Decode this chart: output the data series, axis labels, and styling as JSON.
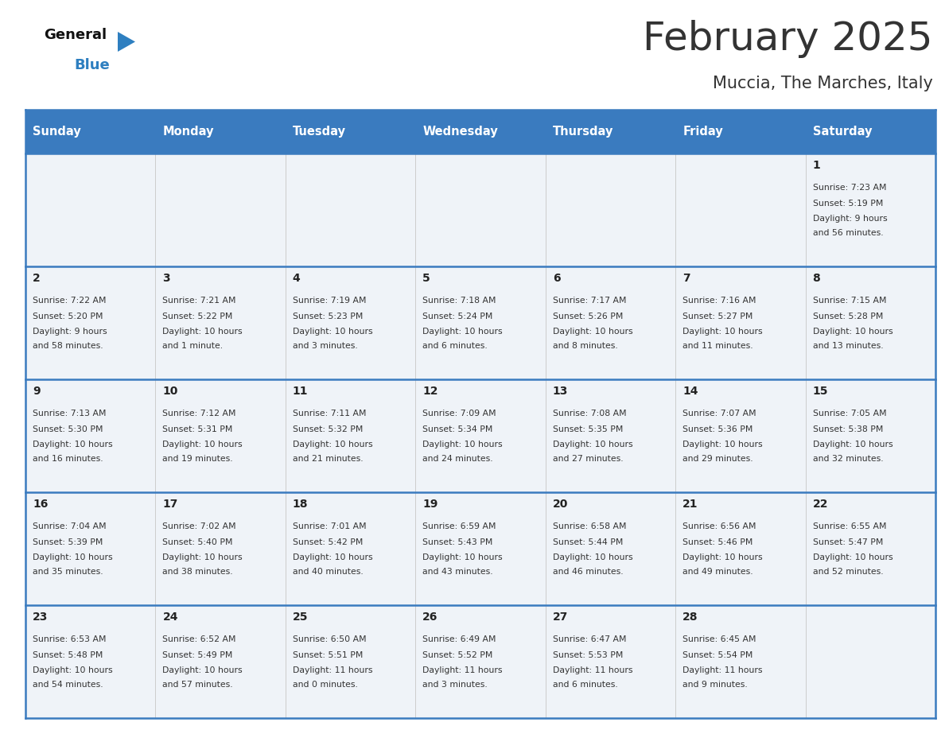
{
  "title": "February 2025",
  "subtitle": "Muccia, The Marches, Italy",
  "header_bg_color": "#3a7bbf",
  "header_text_color": "#ffffff",
  "cell_bg_color": "#eff3f8",
  "border_color": "#3a7bbf",
  "grid_line_color": "#aaaaaa",
  "day_names": [
    "Sunday",
    "Monday",
    "Tuesday",
    "Wednesday",
    "Thursday",
    "Friday",
    "Saturday"
  ],
  "days": [
    {
      "day": 1,
      "col": 6,
      "row": 0,
      "sunrise": "7:23 AM",
      "sunset": "5:19 PM",
      "daylight": "9 hours\nand 56 minutes."
    },
    {
      "day": 2,
      "col": 0,
      "row": 1,
      "sunrise": "7:22 AM",
      "sunset": "5:20 PM",
      "daylight": "9 hours\nand 58 minutes."
    },
    {
      "day": 3,
      "col": 1,
      "row": 1,
      "sunrise": "7:21 AM",
      "sunset": "5:22 PM",
      "daylight": "10 hours\nand 1 minute."
    },
    {
      "day": 4,
      "col": 2,
      "row": 1,
      "sunrise": "7:19 AM",
      "sunset": "5:23 PM",
      "daylight": "10 hours\nand 3 minutes."
    },
    {
      "day": 5,
      "col": 3,
      "row": 1,
      "sunrise": "7:18 AM",
      "sunset": "5:24 PM",
      "daylight": "10 hours\nand 6 minutes."
    },
    {
      "day": 6,
      "col": 4,
      "row": 1,
      "sunrise": "7:17 AM",
      "sunset": "5:26 PM",
      "daylight": "10 hours\nand 8 minutes."
    },
    {
      "day": 7,
      "col": 5,
      "row": 1,
      "sunrise": "7:16 AM",
      "sunset": "5:27 PM",
      "daylight": "10 hours\nand 11 minutes."
    },
    {
      "day": 8,
      "col": 6,
      "row": 1,
      "sunrise": "7:15 AM",
      "sunset": "5:28 PM",
      "daylight": "10 hours\nand 13 minutes."
    },
    {
      "day": 9,
      "col": 0,
      "row": 2,
      "sunrise": "7:13 AM",
      "sunset": "5:30 PM",
      "daylight": "10 hours\nand 16 minutes."
    },
    {
      "day": 10,
      "col": 1,
      "row": 2,
      "sunrise": "7:12 AM",
      "sunset": "5:31 PM",
      "daylight": "10 hours\nand 19 minutes."
    },
    {
      "day": 11,
      "col": 2,
      "row": 2,
      "sunrise": "7:11 AM",
      "sunset": "5:32 PM",
      "daylight": "10 hours\nand 21 minutes."
    },
    {
      "day": 12,
      "col": 3,
      "row": 2,
      "sunrise": "7:09 AM",
      "sunset": "5:34 PM",
      "daylight": "10 hours\nand 24 minutes."
    },
    {
      "day": 13,
      "col": 4,
      "row": 2,
      "sunrise": "7:08 AM",
      "sunset": "5:35 PM",
      "daylight": "10 hours\nand 27 minutes."
    },
    {
      "day": 14,
      "col": 5,
      "row": 2,
      "sunrise": "7:07 AM",
      "sunset": "5:36 PM",
      "daylight": "10 hours\nand 29 minutes."
    },
    {
      "day": 15,
      "col": 6,
      "row": 2,
      "sunrise": "7:05 AM",
      "sunset": "5:38 PM",
      "daylight": "10 hours\nand 32 minutes."
    },
    {
      "day": 16,
      "col": 0,
      "row": 3,
      "sunrise": "7:04 AM",
      "sunset": "5:39 PM",
      "daylight": "10 hours\nand 35 minutes."
    },
    {
      "day": 17,
      "col": 1,
      "row": 3,
      "sunrise": "7:02 AM",
      "sunset": "5:40 PM",
      "daylight": "10 hours\nand 38 minutes."
    },
    {
      "day": 18,
      "col": 2,
      "row": 3,
      "sunrise": "7:01 AM",
      "sunset": "5:42 PM",
      "daylight": "10 hours\nand 40 minutes."
    },
    {
      "day": 19,
      "col": 3,
      "row": 3,
      "sunrise": "6:59 AM",
      "sunset": "5:43 PM",
      "daylight": "10 hours\nand 43 minutes."
    },
    {
      "day": 20,
      "col": 4,
      "row": 3,
      "sunrise": "6:58 AM",
      "sunset": "5:44 PM",
      "daylight": "10 hours\nand 46 minutes."
    },
    {
      "day": 21,
      "col": 5,
      "row": 3,
      "sunrise": "6:56 AM",
      "sunset": "5:46 PM",
      "daylight": "10 hours\nand 49 minutes."
    },
    {
      "day": 22,
      "col": 6,
      "row": 3,
      "sunrise": "6:55 AM",
      "sunset": "5:47 PM",
      "daylight": "10 hours\nand 52 minutes."
    },
    {
      "day": 23,
      "col": 0,
      "row": 4,
      "sunrise": "6:53 AM",
      "sunset": "5:48 PM",
      "daylight": "10 hours\nand 54 minutes."
    },
    {
      "day": 24,
      "col": 1,
      "row": 4,
      "sunrise": "6:52 AM",
      "sunset": "5:49 PM",
      "daylight": "10 hours\nand 57 minutes."
    },
    {
      "day": 25,
      "col": 2,
      "row": 4,
      "sunrise": "6:50 AM",
      "sunset": "5:51 PM",
      "daylight": "11 hours\nand 0 minutes."
    },
    {
      "day": 26,
      "col": 3,
      "row": 4,
      "sunrise": "6:49 AM",
      "sunset": "5:52 PM",
      "daylight": "11 hours\nand 3 minutes."
    },
    {
      "day": 27,
      "col": 4,
      "row": 4,
      "sunrise": "6:47 AM",
      "sunset": "5:53 PM",
      "daylight": "11 hours\nand 6 minutes."
    },
    {
      "day": 28,
      "col": 5,
      "row": 4,
      "sunrise": "6:45 AM",
      "sunset": "5:54 PM",
      "daylight": "11 hours\nand 9 minutes."
    }
  ],
  "num_rows": 5,
  "num_cols": 7,
  "fig_width": 11.88,
  "fig_height": 9.18,
  "title_fontsize": 36,
  "subtitle_fontsize": 15,
  "day_header_fontsize": 10.5,
  "day_num_fontsize": 10,
  "day_info_fontsize": 7.8,
  "text_color": "#333333",
  "day_num_color": "#222222",
  "logo_general_color": "#111111",
  "logo_blue_color": "#2e7fc0"
}
